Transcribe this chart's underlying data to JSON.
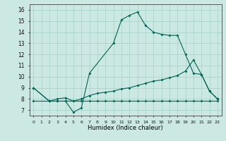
{
  "xlabel": "Humidex (Indice chaleur)",
  "bg_color": "#cbe8e3",
  "grid_color": "#a8d5cc",
  "line_color": "#006655",
  "xlim": [
    -0.5,
    23.5
  ],
  "ylim": [
    6.5,
    16.5
  ],
  "xticks": [
    0,
    1,
    2,
    3,
    4,
    5,
    6,
    7,
    8,
    9,
    10,
    11,
    12,
    13,
    14,
    15,
    16,
    17,
    18,
    19,
    20,
    21,
    22,
    23
  ],
  "yticks": [
    7,
    8,
    9,
    10,
    11,
    12,
    13,
    14,
    15,
    16
  ],
  "line1_x": [
    0,
    2,
    3,
    4,
    5,
    6,
    7,
    10,
    11,
    12,
    13,
    14,
    15,
    16,
    17,
    18,
    19,
    20,
    21,
    22,
    23
  ],
  "line1_y": [
    9.0,
    7.8,
    7.8,
    7.8,
    6.8,
    7.2,
    10.3,
    13.0,
    15.1,
    15.5,
    15.8,
    14.6,
    14.0,
    13.8,
    13.7,
    13.7,
    12.0,
    10.3,
    10.2,
    8.7,
    8.0
  ],
  "line2_x": [
    0,
    2,
    3,
    4,
    5,
    6,
    7,
    8,
    9,
    10,
    11,
    12,
    13,
    14,
    15,
    16,
    17,
    18,
    19,
    20,
    21,
    22,
    23
  ],
  "line2_y": [
    7.8,
    7.8,
    7.8,
    7.8,
    7.8,
    7.8,
    7.8,
    7.8,
    7.8,
    7.8,
    7.8,
    7.8,
    7.8,
    7.8,
    7.8,
    7.8,
    7.8,
    7.8,
    7.8,
    7.8,
    7.8,
    7.8,
    7.8
  ],
  "line3_x": [
    0,
    2,
    3,
    4,
    5,
    6,
    7,
    8,
    9,
    10,
    11,
    12,
    13,
    14,
    15,
    16,
    17,
    18,
    19,
    20,
    21,
    22,
    23
  ],
  "line3_y": [
    9.0,
    7.8,
    8.0,
    8.1,
    7.8,
    8.0,
    8.3,
    8.5,
    8.6,
    8.7,
    8.9,
    9.0,
    9.2,
    9.4,
    9.6,
    9.7,
    9.9,
    10.1,
    10.5,
    11.5,
    10.2,
    8.7,
    8.0
  ]
}
